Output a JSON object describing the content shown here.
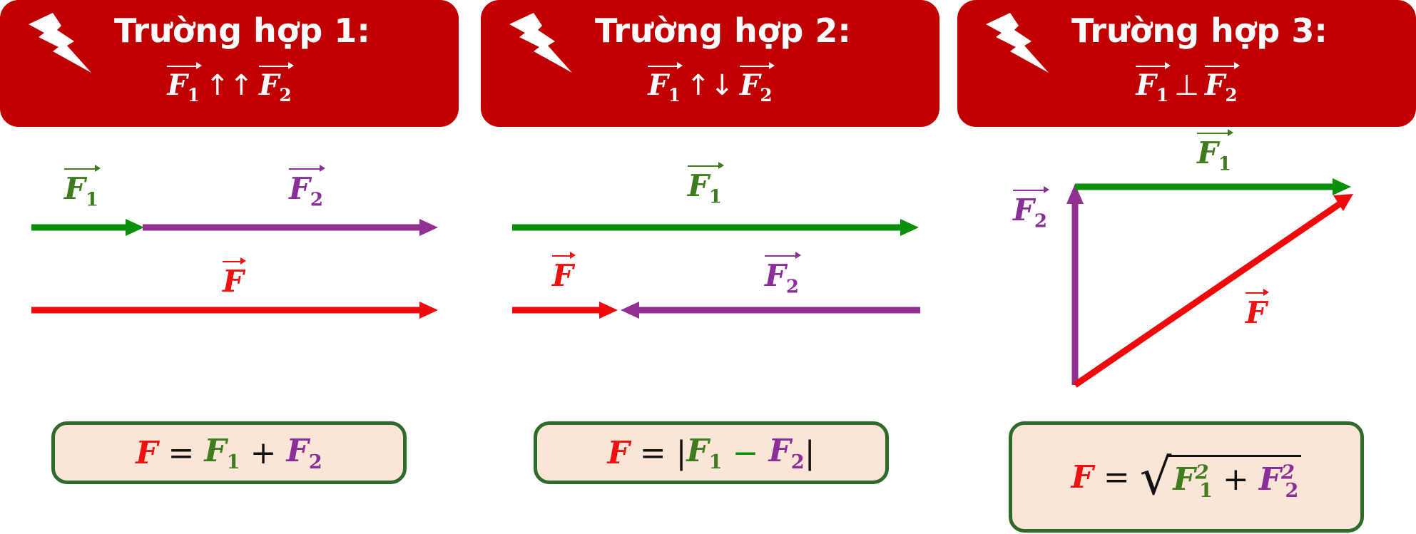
{
  "colors": {
    "header": "#c00000",
    "green": "#0a8f0a",
    "purple": "#922f92",
    "red": "#ee0a0a",
    "box_bg": "#fbe5d6",
    "box_border": "#2e6b2a"
  },
  "icons": {
    "header_icon": "lightning-bolt-icon"
  },
  "panels": [
    {
      "title": "Trường hợp 1:",
      "sub": {
        "a": "F",
        "a_sub": "1",
        "rel": "↑↑",
        "b": "F",
        "b_sub": "2"
      },
      "labels": {
        "f1": "F",
        "f1_sub": "1",
        "f2": "F",
        "f2_sub": "2",
        "f": "F"
      },
      "formula": {
        "lhs": "F",
        "eq": "=",
        "t1": "F",
        "t1_sub": "1",
        "op": "+",
        "t2": "F",
        "t2_sub": "2"
      }
    },
    {
      "title": "Trường hợp 2:",
      "sub": {
        "a": "F",
        "a_sub": "1",
        "rel": "↑↓",
        "b": "F",
        "b_sub": "2"
      },
      "labels": {
        "f1": "F",
        "f1_sub": "1",
        "f2": "F",
        "f2_sub": "2",
        "f": "F"
      },
      "formula": {
        "lhs": "F",
        "eq": "=",
        "bar_l": "|",
        "t1": "F",
        "t1_sub": "1",
        "op": "−",
        "t2": "F",
        "t2_sub": "2",
        "bar_r": "|"
      }
    },
    {
      "title": "Trường hợp 3:",
      "sub": {
        "a": "F",
        "a_sub": "1",
        "rel": "⊥",
        "b": "F",
        "b_sub": "2"
      },
      "labels": {
        "f1": "F",
        "f1_sub": "1",
        "f2": "F",
        "f2_sub": "2",
        "f": "F"
      },
      "formula": {
        "lhs": "F",
        "eq": "=",
        "t1": "F",
        "t1_sub": "1",
        "t1_sup": "2",
        "op": "+",
        "t2": "F",
        "t2_sub": "2",
        "t2_sup": "2"
      }
    }
  ]
}
